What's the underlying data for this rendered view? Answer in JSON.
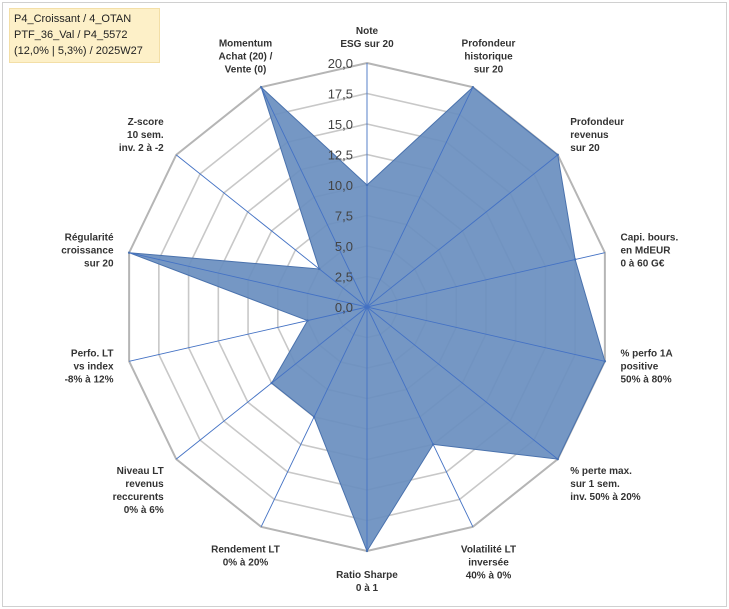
{
  "info_box": {
    "line1": "P4_Croissant / 4_OTAN",
    "line2": "PTF_36_Val / P4_5572",
    "line3": "(12,0% | 5,3%) / 2025W27"
  },
  "chart_data": {
    "type": "radar",
    "axis_range": [
      0,
      20
    ],
    "tick_labels": [
      "0,0",
      "2,5",
      "5,0",
      "7,5",
      "10,0",
      "12,5",
      "15,0",
      "17,5",
      "20,0"
    ],
    "grid": "polygon",
    "series_color": "#6a8fc0",
    "axes": [
      {
        "label": [
          "Note",
          "ESG sur 20"
        ],
        "value": 10
      },
      {
        "label": [
          "Profondeur",
          "historique",
          "sur 20"
        ],
        "value": 20
      },
      {
        "label": [
          "Profondeur",
          "revenus",
          "sur 20"
        ],
        "value": 20
      },
      {
        "label": [
          "Capi. bours.",
          "en MdEUR",
          "0 à 60 G€"
        ],
        "value": 17.5
      },
      {
        "label": [
          "% perfo 1A",
          "positive",
          "50% à 80%"
        ],
        "value": 20
      },
      {
        "label": [
          "% perte max.",
          "sur 1 sem.",
          "inv. 50% à 20%"
        ],
        "value": 20
      },
      {
        "label": [
          "Volatilité LT",
          "inversée",
          "40% à 0%"
        ],
        "value": 12.5
      },
      {
        "label": [
          "Ratio Sharpe",
          "0 à 1"
        ],
        "value": 20
      },
      {
        "label": [
          "Rendement LT",
          "0% à 20%"
        ],
        "value": 10
      },
      {
        "label": [
          "Niveau LT",
          "revenus",
          "reccurents",
          "0% à 6%"
        ],
        "value": 10
      },
      {
        "label": [
          "Perfo. LT",
          "vs index",
          "-8% à 12%"
        ],
        "value": 5
      },
      {
        "label": [
          "Régularité",
          "croissance",
          "sur 20"
        ],
        "value": 20
      },
      {
        "label": [
          "Z-score",
          "10 sem.",
          "inv. 2 à -2"
        ],
        "value": 5
      },
      {
        "label": [
          "Momentum",
          "Achat (20) /",
          "Vente (0)"
        ],
        "value": 20
      }
    ]
  }
}
